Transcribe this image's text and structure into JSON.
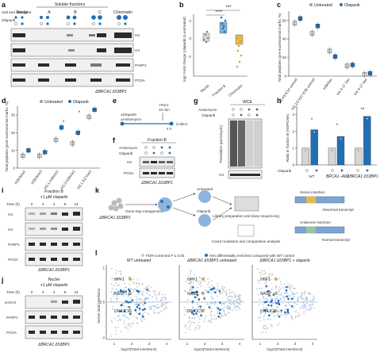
{
  "colors": {
    "olaparib": "#1f6fb5",
    "untreated": "#a0a0a0",
    "light_blue": "#a9c5e8",
    "gold": "#e8b84a",
    "grey_points": "#c8c8c8"
  },
  "panel_labels": [
    "a",
    "b",
    "c",
    "d",
    "e",
    "f",
    "g",
    "h",
    "i",
    "j",
    "k",
    "l"
  ],
  "panel_a": {
    "header": "Soluble fractions",
    "fractions": [
      "Nuclei",
      "A",
      "B",
      "C",
      "Chromatin"
    ],
    "row_labels": [
      "Salt and detergent",
      "Olaparib"
    ],
    "blot_labels": [
      "H3",
      "H4",
      "PARP1",
      "PCNA"
    ],
    "footer": "ΔBRCA1 Δ53BP1"
  },
  "panel_b": {
    "ylabel": "log2 Fold change (olaparib to untreated)",
    "sig_1": "****",
    "sig_2": "***",
    "yticks": [
      "2",
      "0",
      "-2"
    ]
  },
  "panel_c": {
    "legend": [
      "Untreated",
      "Olaparib"
    ],
    "ylabel": "Total peptides (pre-nucleosomal marks, %)",
    "yticks": [
      "0",
      "20",
      "40",
      "60"
    ],
    "categories": [
      "H3 K9 K14 unmod",
      "H3.1/2 K27 K36 unmod",
      "H3K9ac",
      "H4 4-17 2ac",
      "H4 4-17 4ac"
    ]
  },
  "panel_d": {
    "legend": [
      "Untreated",
      "Olaparib"
    ],
    "ylabel": "Total peptides (post-nucleosomal marks, %)",
    "yticks": [
      "0",
      "10",
      "20",
      "30"
    ],
    "categories": [
      "H3K9me2",
      "H3K9me3",
      "H3.1 K36me2",
      "H3.3 K36me2",
      "H3.1 K27me2"
    ],
    "sig": [
      "*",
      "*"
    ]
  },
  "panel_e": {
    "start_labels": [
      "±Olaparib",
      "±Anisomycin"
    ],
    "puro": "+Puro",
    "time_10": "10 min",
    "time_4h": "4 h",
    "end": "Collect"
  },
  "panel_f": {
    "title": "Fraction B",
    "rows": [
      "Anisomycin",
      "Olaparib"
    ],
    "blots": [
      "H3",
      "PCNA"
    ],
    "footer": "ΔBRCA1 Δ53BP1"
  },
  "panel_g": {
    "title": "WCE",
    "rows": [
      "Anisomycin",
      "Olaparib"
    ],
    "ylabel": "Translation (puromycin)",
    "bottom": "H3"
  },
  "panel_h": {
    "ylabel": "Ratio in fraction B (H3/PCNA)",
    "yticks": [
      "0",
      "1",
      "2",
      "3"
    ],
    "groups": [
      "WT",
      "BRCA1 -AID",
      "ΔBRCA1 Δ53BP1"
    ],
    "row": "Olaparib",
    "sig": [
      "*",
      "*",
      "**"
    ]
  },
  "panel_i": {
    "title1": "Fraction B",
    "title2": "+1 μM olaparib",
    "time_label": "Time (h)",
    "times": [
      "0",
      "2",
      "4",
      "8",
      "24"
    ],
    "blots": [
      "H3",
      "H4",
      "PARP1",
      "PCNA"
    ],
    "footer": "ΔBRCA1 Δ53BP1"
  },
  "panel_j": {
    "title1": "Nuclei",
    "title2": "+1 μM olaparib",
    "time_label": "Time (h)",
    "times": [
      "0",
      "2",
      "4",
      "8",
      "24"
    ],
    "blots": [
      "γH2AX",
      "PARP1",
      "PCNA"
    ],
    "footer": "ΔBRCA1 Δ53BP1"
  },
  "panel_k": {
    "cell": "ΔBRCA1 Δ53BP1",
    "step1": "Gene-trap mutagenesis",
    "untreated": "Untreated",
    "olaparib": "Olaparib",
    "lib": "Library preparation and deep sequencing",
    "count": "Count mutations and comparative analysis",
    "sense": "Sense insertion",
    "abn": "Abnormal transcript",
    "antisense": "Antisense insertion",
    "normal": "Normal transcript"
  },
  "panel_l": {
    "legend1": "FDR-corrected P ≤ 0.05",
    "legend2": "Hits differentially enriched compared with WT control",
    "titles": [
      "WT untreated",
      "ΔBRCA1 Δ53BP1 untreated",
      "ΔBRCA1 Δ53BP1 + olaparib"
    ],
    "ylabel": "Sense total insertions",
    "xlabel": "log10(Total insertions)",
    "xticks": [
      "1",
      "2",
      "3",
      "4"
    ],
    "yticks": [
      "0",
      "0.5",
      "1"
    ],
    "genes": [
      "HPF1",
      "NASP",
      "DNAJC9"
    ]
  },
  "chart_data": [
    {
      "type": "box",
      "panel": "c",
      "categories": [
        "H3 K9 K14 unmod",
        "H3.1/2 K27 K36 unmod",
        "H3K9ac",
        "H4 4-17 2ac",
        "H4 4-17 4ac"
      ],
      "series": [
        {
          "name": "Untreated",
          "values": [
            57,
            46,
            27,
            11,
            2
          ]
        },
        {
          "name": "Olaparib",
          "values": [
            62,
            54,
            21,
            12,
            3
          ]
        }
      ],
      "ylim": [
        0,
        70
      ]
    },
    {
      "type": "box",
      "panel": "d",
      "categories": [
        "H3K9me2",
        "H3K9me3",
        "H3.1 K36me2",
        "H3.3 K36me2",
        "H3.1 K27me2"
      ],
      "series": [
        {
          "name": "Untreated",
          "values": [
            7,
            7,
            16,
            14,
            29
          ]
        },
        {
          "name": "Olaparib",
          "values": [
            10,
            9,
            23,
            20,
            33
          ]
        }
      ],
      "ylim": [
        0,
        35
      ]
    },
    {
      "type": "bar",
      "panel": "h",
      "categories": [
        "WT",
        "BRCA1 -AID",
        "ΔBRCA1 Δ53BP1"
      ],
      "series": [
        {
          "name": "Untreated",
          "values": [
            1.0,
            1.0,
            1.0
          ]
        },
        {
          "name": "Olaparib",
          "values": [
            2.1,
            1.7,
            2.9
          ]
        }
      ],
      "ylim": [
        0,
        3.5
      ]
    }
  ]
}
